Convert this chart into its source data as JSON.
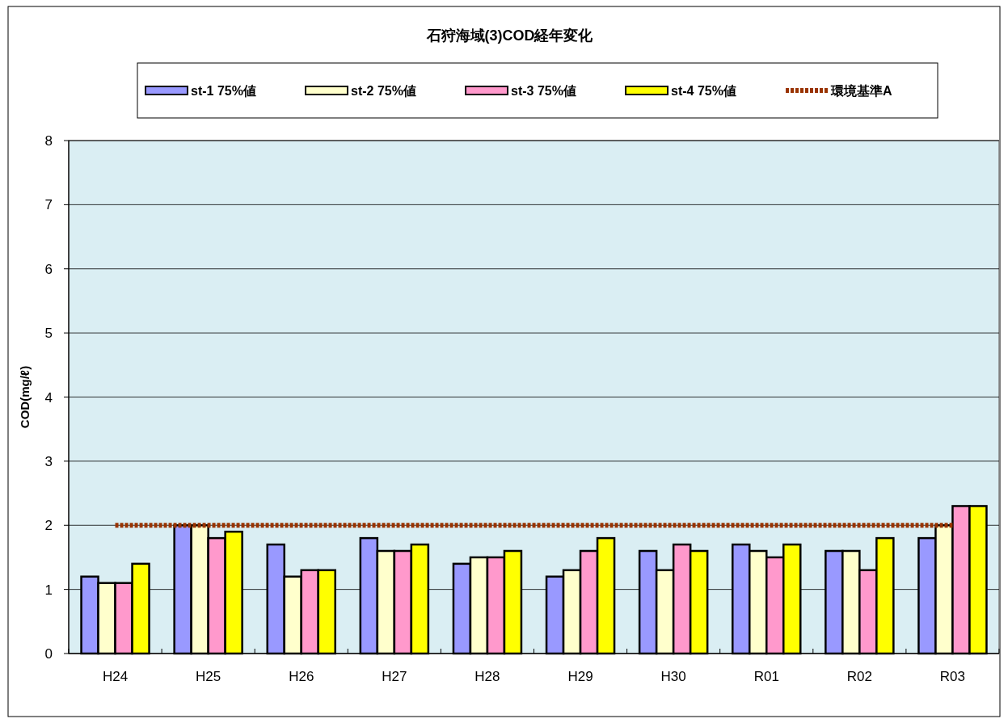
{
  "chart_data": {
    "type": "bar",
    "title": "石狩海域(3)COD経年変化",
    "ylabel": "COD(mg/ℓ)",
    "categories": [
      "H24",
      "H25",
      "H26",
      "H27",
      "H28",
      "H29",
      "H30",
      "R01",
      "R02",
      "R03"
    ],
    "series": [
      {
        "name": "st-1 75%値",
        "color": "#9999ff",
        "values": [
          1.2,
          2.0,
          1.7,
          1.8,
          1.4,
          1.2,
          1.6,
          1.7,
          1.6,
          1.8
        ]
      },
      {
        "name": "st-2 75%値",
        "color": "#ffffcc",
        "values": [
          1.1,
          2.0,
          1.2,
          1.6,
          1.5,
          1.3,
          1.3,
          1.6,
          1.6,
          2.0
        ]
      },
      {
        "name": "st-3 75%値",
        "color": "#ff99cc",
        "values": [
          1.1,
          1.8,
          1.3,
          1.6,
          1.5,
          1.6,
          1.7,
          1.5,
          1.3,
          2.3
        ]
      },
      {
        "name": "st-4 75%値",
        "color": "#ffff00",
        "values": [
          1.4,
          1.9,
          1.3,
          1.7,
          1.6,
          1.8,
          1.6,
          1.7,
          1.8,
          2.3
        ]
      },
      {
        "name": "環境基準A",
        "type": "line",
        "line_style": "dotted",
        "color": "#993300",
        "values": [
          2,
          2,
          2,
          2,
          2,
          2,
          2,
          2,
          2,
          2
        ]
      }
    ],
    "ylim": [
      0,
      8
    ],
    "yticks": [
      0,
      1,
      2,
      3,
      4,
      5,
      6,
      7,
      8
    ],
    "grid": "y",
    "legend": "top"
  }
}
